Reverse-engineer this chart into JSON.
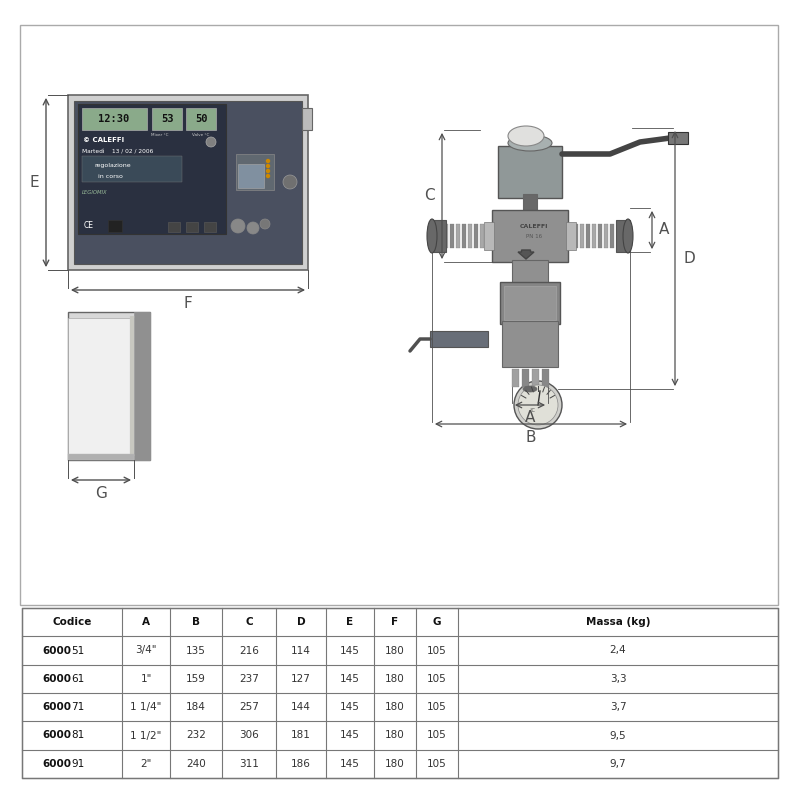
{
  "bg_color": "#ffffff",
  "table_headers": [
    "Codice",
    "A",
    "B",
    "C",
    "D",
    "E",
    "F",
    "G",
    "Massa (kg)"
  ],
  "table_rows": [
    [
      "6000",
      "51",
      "3/4\"",
      "135",
      "216",
      "114",
      "145",
      "180",
      "105",
      "2,4"
    ],
    [
      "6000",
      "61",
      "1\"",
      "159",
      "237",
      "127",
      "145",
      "180",
      "105",
      "3,3"
    ],
    [
      "6000",
      "71",
      "1 1/4\"",
      "184",
      "257",
      "144",
      "145",
      "180",
      "105",
      "3,7"
    ],
    [
      "6000",
      "81",
      "1 1/2\"",
      "232",
      "306",
      "181",
      "145",
      "180",
      "105",
      "9,5"
    ],
    [
      "6000",
      "91",
      "2\"",
      "240",
      "311",
      "186",
      "145",
      "180",
      "105",
      "9,7"
    ]
  ],
  "panel_bg": "#c8c8c8",
  "panel_face": "#4a5060",
  "display_bg": "#2a3040",
  "lcd_color": "#8aaa8a",
  "valve_mid": "#909090",
  "valve_dark": "#686868",
  "valve_light": "#b8b8b8",
  "line_color": "#404040",
  "dim_color": "#505050"
}
